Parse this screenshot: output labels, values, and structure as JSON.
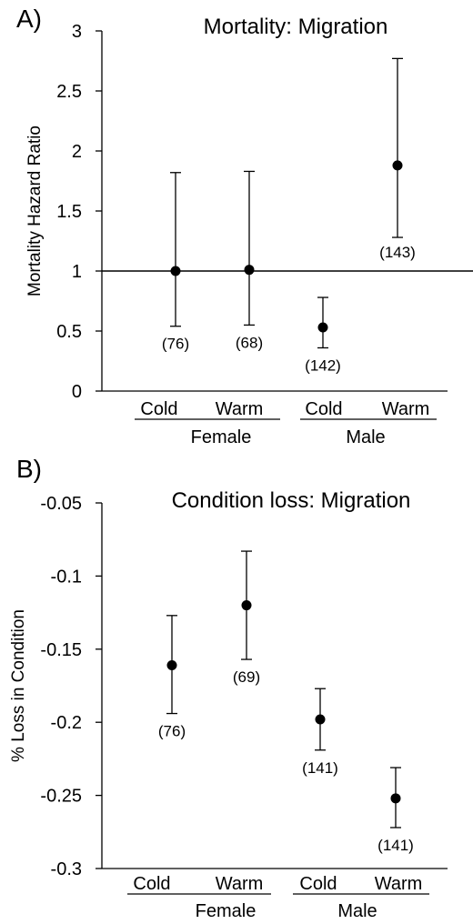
{
  "chart_data": [
    {
      "panel": "A)",
      "type": "scatter",
      "title": "Mortality: Migration",
      "ylabel": "Mortality Hazard Ratio",
      "ylim": [
        0,
        3
      ],
      "yticks": [
        {
          "value": 0,
          "label": "0"
        },
        {
          "value": 0.5,
          "label": "0.5"
        },
        {
          "value": 1,
          "label": "1"
        },
        {
          "value": 1.5,
          "label": "1.5"
        },
        {
          "value": 2,
          "label": "2"
        },
        {
          "value": 2.5,
          "label": "2.5"
        },
        {
          "value": 3,
          "label": "3"
        }
      ],
      "reference_line": 1,
      "groups": [
        "Female",
        "Male"
      ],
      "points": [
        {
          "group": "Female",
          "category": "Cold",
          "value": 1.0,
          "lower": 0.54,
          "upper": 1.82,
          "n_label": "(76)"
        },
        {
          "group": "Female",
          "category": "Warm",
          "value": 1.01,
          "lower": 0.55,
          "upper": 1.83,
          "n_label": "(68)"
        },
        {
          "group": "Male",
          "category": "Cold",
          "value": 0.53,
          "lower": 0.36,
          "upper": 0.78,
          "n_label": "(142)"
        },
        {
          "group": "Male",
          "category": "Warm",
          "value": 1.88,
          "lower": 1.28,
          "upper": 2.77,
          "n_label": "(143)"
        }
      ]
    },
    {
      "panel": "B)",
      "type": "scatter",
      "title": "Condition loss: Migration",
      "ylabel": "% Loss in Condition",
      "ylim": [
        -0.3,
        -0.05
      ],
      "yticks": [
        {
          "value": -0.05,
          "label": "-0.05"
        },
        {
          "value": -0.1,
          "label": "-0.1"
        },
        {
          "value": -0.15,
          "label": "-0.15"
        },
        {
          "value": -0.2,
          "label": "-0.2"
        },
        {
          "value": -0.25,
          "label": "-0.25"
        },
        {
          "value": -0.3,
          "label": "-0.3"
        }
      ],
      "groups": [
        "Female",
        "Male"
      ],
      "points": [
        {
          "group": "Female",
          "category": "Cold",
          "value": -0.161,
          "lower": -0.194,
          "upper": -0.127,
          "n_label": "(76)"
        },
        {
          "group": "Female",
          "category": "Warm",
          "value": -0.12,
          "lower": -0.157,
          "upper": -0.083,
          "n_label": "(69)"
        },
        {
          "group": "Male",
          "category": "Cold",
          "value": -0.198,
          "lower": -0.219,
          "upper": -0.177,
          "n_label": "(141)"
        },
        {
          "group": "Male",
          "category": "Warm",
          "value": -0.252,
          "lower": -0.272,
          "upper": -0.231,
          "n_label": "(141)"
        }
      ]
    }
  ]
}
